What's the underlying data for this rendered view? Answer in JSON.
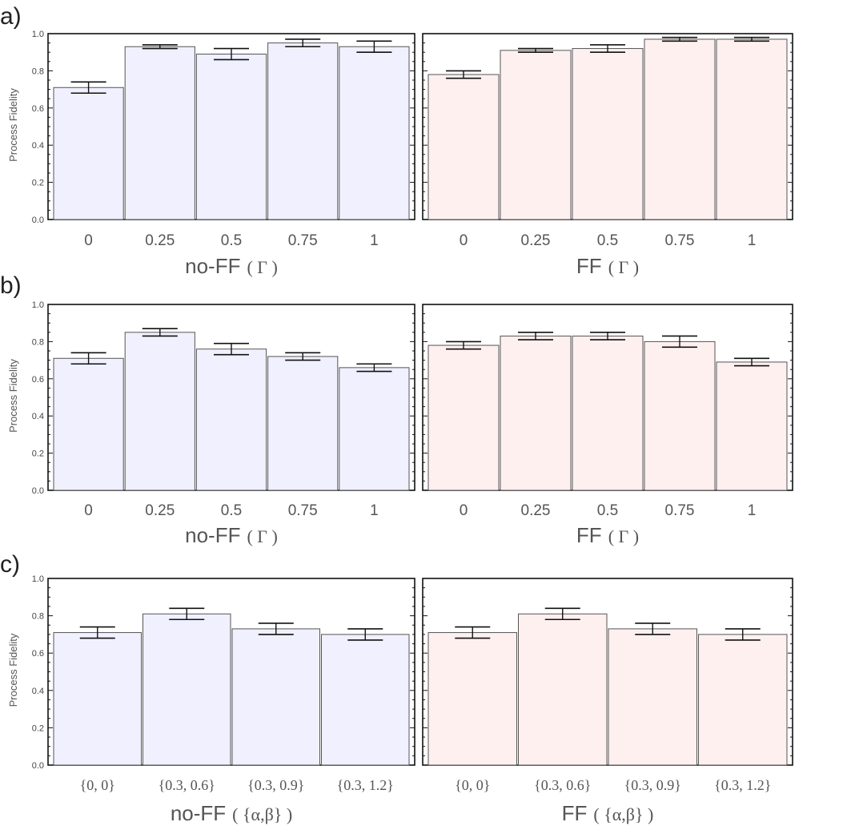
{
  "colors": {
    "noff_fill": "#f0f0ff",
    "ff_fill": "#fff0f0",
    "bar_stroke": "#555555",
    "frame": "#111111",
    "errorbar": "#111111"
  },
  "chart_data": [
    {
      "panel": "a)",
      "type": "bar",
      "ylabel": "Process Fidelity",
      "ylim": [
        0,
        1.0
      ],
      "yticks": [
        "0.0",
        "0.2",
        "0.4",
        "0.6",
        "0.8",
        "1.0"
      ],
      "subplots": [
        {
          "condition": "no-FF",
          "param": "( Γ )",
          "fill": "noff",
          "categories": [
            "0",
            "0.25",
            "0.5",
            "0.75",
            "1"
          ],
          "values": [
            0.71,
            0.93,
            0.89,
            0.95,
            0.93
          ],
          "errors": [
            0.03,
            0.01,
            0.03,
            0.02,
            0.03
          ]
        },
        {
          "condition": "FF",
          "param": "( Γ )",
          "fill": "ff",
          "categories": [
            "0",
            "0.25",
            "0.5",
            "0.75",
            "1"
          ],
          "values": [
            0.78,
            0.91,
            0.92,
            0.97,
            0.97
          ],
          "errors": [
            0.02,
            0.01,
            0.02,
            0.01,
            0.01
          ]
        }
      ]
    },
    {
      "panel": "b)",
      "type": "bar",
      "ylabel": "Process Fidelity",
      "ylim": [
        0,
        1.0
      ],
      "yticks": [
        "0.0",
        "0.2",
        "0.4",
        "0.6",
        "0.8",
        "1.0"
      ],
      "subplots": [
        {
          "condition": "no-FF",
          "param": "( Γ )",
          "fill": "noff",
          "categories": [
            "0",
            "0.25",
            "0.5",
            "0.75",
            "1"
          ],
          "values": [
            0.71,
            0.85,
            0.76,
            0.72,
            0.66
          ],
          "errors": [
            0.03,
            0.02,
            0.03,
            0.02,
            0.02
          ]
        },
        {
          "condition": "FF",
          "param": "( Γ )",
          "fill": "ff",
          "categories": [
            "0",
            "0.25",
            "0.5",
            "0.75",
            "1"
          ],
          "values": [
            0.78,
            0.83,
            0.83,
            0.8,
            0.69
          ],
          "errors": [
            0.02,
            0.02,
            0.02,
            0.03,
            0.02
          ]
        }
      ]
    },
    {
      "panel": "c)",
      "type": "bar",
      "ylabel": "Process Fidelity",
      "ylim": [
        0,
        1.0
      ],
      "yticks": [
        "0.0",
        "0.2",
        "0.4",
        "0.6",
        "0.8",
        "1.0"
      ],
      "subplots": [
        {
          "condition": "no-FF",
          "param": "( {α,β} )",
          "fill": "noff",
          "categories": [
            "{0, 0}",
            "{0.3, 0.6}",
            "{0.3, 0.9}",
            "{0.3, 1.2}"
          ],
          "values": [
            0.71,
            0.81,
            0.73,
            0.7
          ],
          "errors": [
            0.03,
            0.03,
            0.03,
            0.03
          ]
        },
        {
          "condition": "FF",
          "param": "( {α,β} )",
          "fill": "ff",
          "categories": [
            "{0, 0}",
            "{0.3, 0.6}",
            "{0.3, 0.9}",
            "{0.3, 1.2}"
          ],
          "values": [
            0.71,
            0.81,
            0.73,
            0.7
          ],
          "errors": [
            0.03,
            0.03,
            0.03,
            0.03
          ]
        }
      ]
    }
  ]
}
